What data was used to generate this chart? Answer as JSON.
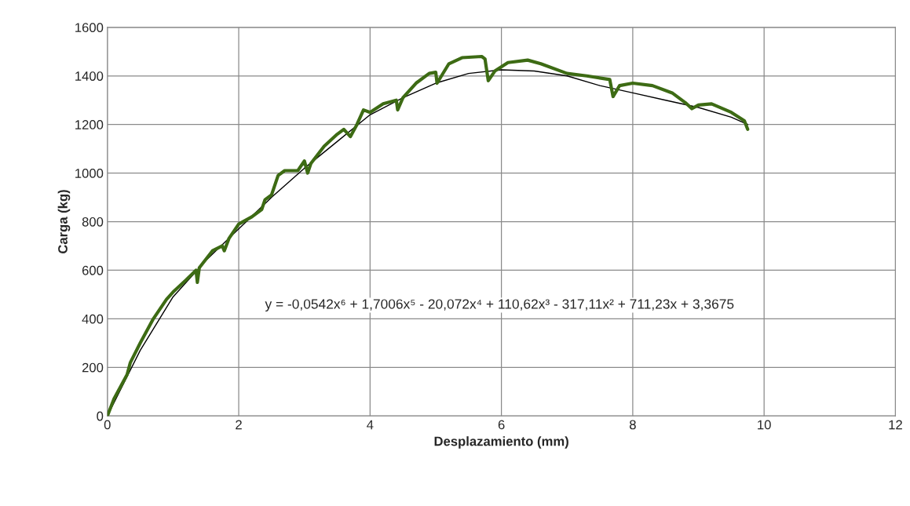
{
  "chart_data": {
    "type": "line",
    "xlabel": "Desplazamiento (mm)",
    "ylabel": "Carga (kg)",
    "xlim": [
      0,
      12
    ],
    "xticks": [
      0,
      2,
      4,
      6,
      8,
      10,
      12
    ],
    "ylim": [
      0,
      1600
    ],
    "yticks": [
      0,
      200,
      400,
      600,
      800,
      1000,
      1200,
      1400,
      1600
    ],
    "grid": true,
    "legend": false,
    "marker": "none",
    "annotations": [
      "y = -0,0542x⁶ + 1,7006x⁵ - 20,072x⁴ + 110,62x³ - 317,11x² + 711,23x + 3,3675"
    ],
    "series": [
      {
        "color": "#3d6b14",
        "line_style": "solid",
        "x": [
          0,
          0.1,
          0.3,
          0.35,
          0.5,
          0.7,
          0.9,
          1.0,
          1.2,
          1.35,
          1.37,
          1.4,
          1.6,
          1.75,
          1.78,
          1.85,
          2.0,
          2.2,
          2.35,
          2.4,
          2.5,
          2.6,
          2.7,
          2.9,
          3.0,
          3.05,
          3.1,
          3.3,
          3.5,
          3.6,
          3.7,
          3.8,
          3.9,
          4.0,
          4.2,
          4.4,
          4.42,
          4.5,
          4.7,
          4.9,
          5.0,
          5.02,
          5.2,
          5.4,
          5.7,
          5.75,
          5.8,
          5.9,
          6.1,
          6.4,
          6.6,
          7.0,
          7.3,
          7.65,
          7.7,
          7.8,
          8.0,
          8.3,
          8.6,
          8.8,
          8.9,
          9.0,
          9.2,
          9.5,
          9.7,
          9.75
        ],
        "values": [
          0,
          70,
          170,
          220,
          300,
          400,
          480,
          510,
          560,
          600,
          550,
          610,
          680,
          700,
          680,
          730,
          790,
          820,
          850,
          890,
          910,
          990,
          1010,
          1010,
          1050,
          1000,
          1040,
          1110,
          1160,
          1180,
          1150,
          1200,
          1260,
          1250,
          1285,
          1300,
          1260,
          1310,
          1370,
          1410,
          1415,
          1370,
          1450,
          1475,
          1480,
          1470,
          1380,
          1420,
          1455,
          1465,
          1450,
          1410,
          1400,
          1385,
          1315,
          1360,
          1370,
          1360,
          1330,
          1290,
          1265,
          1280,
          1285,
          1250,
          1215,
          1180
        ]
      },
      {
        "color": "#000000",
        "line_style": "solid",
        "x": [
          0,
          0.5,
          1,
          1.5,
          2,
          2.5,
          3,
          3.5,
          4,
          4.5,
          5,
          5.5,
          6,
          6.5,
          7,
          7.5,
          8,
          8.5,
          9,
          9.5,
          9.75
        ],
        "values": [
          0,
          270,
          490,
          640,
          770,
          900,
          1020,
          1130,
          1240,
          1310,
          1370,
          1410,
          1425,
          1420,
          1400,
          1360,
          1330,
          1300,
          1270,
          1230,
          1200
        ]
      }
    ]
  }
}
